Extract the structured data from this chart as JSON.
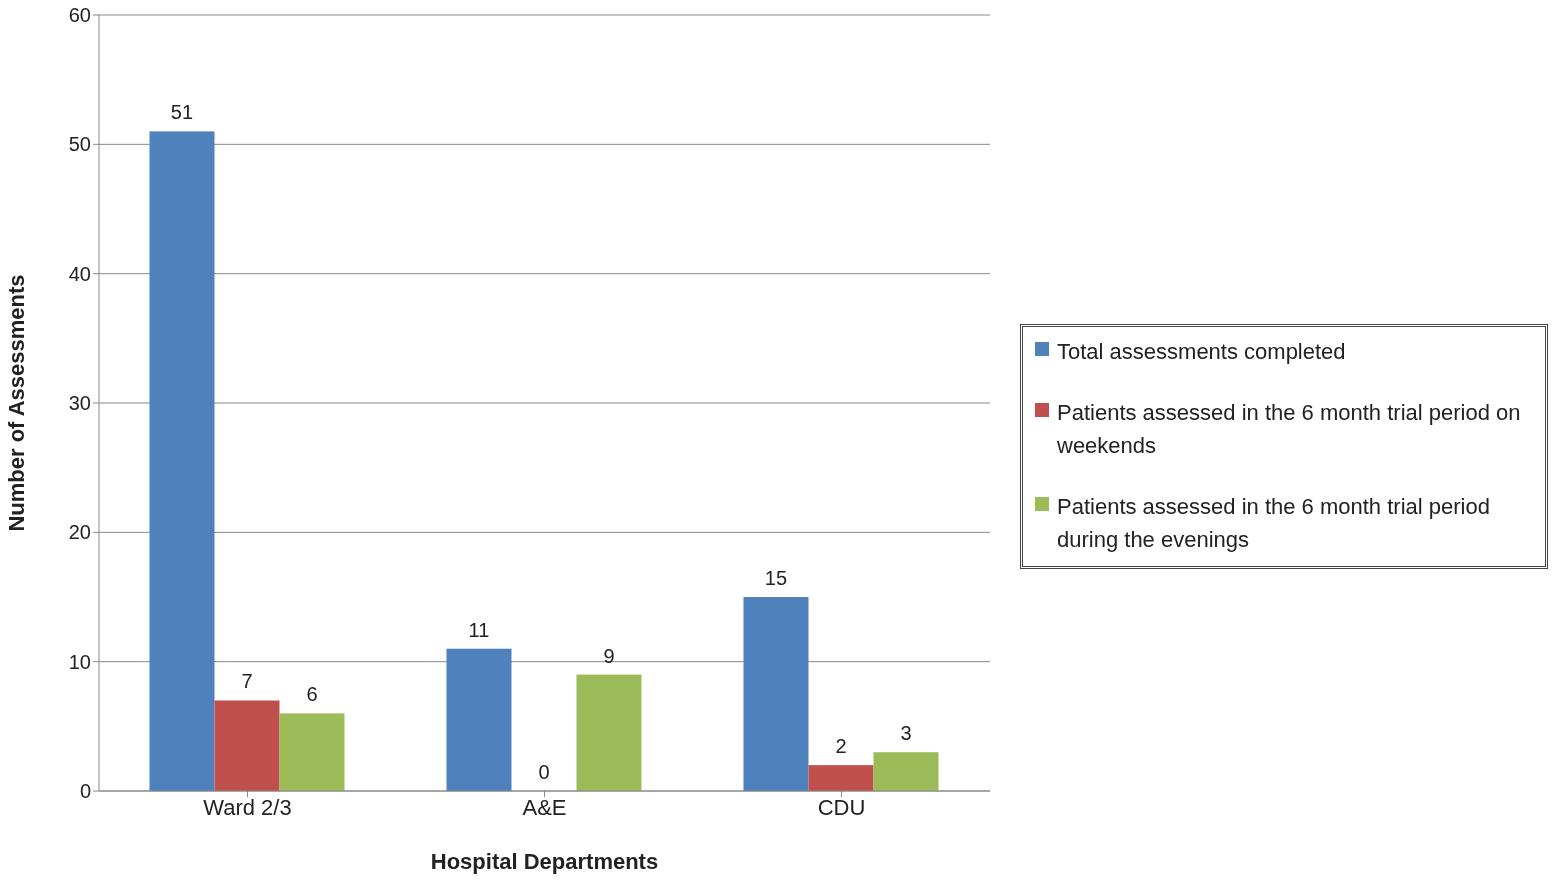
{
  "chart_data": {
    "type": "bar",
    "xlabel": "Hospital Departments",
    "ylabel": "Number of Assessments",
    "categories": [
      "Ward 2/3",
      "A&E",
      "CDU"
    ],
    "series": [
      {
        "name": "Total assessments completed",
        "color": "#4f81bd",
        "values": [
          51,
          11,
          15
        ]
      },
      {
        "name": "Patients assessed in the 6 month trial period on weekends",
        "color": "#c0504d",
        "values": [
          7,
          0,
          2
        ]
      },
      {
        "name": "Patients assessed in the 6 month trial period during the evenings",
        "color": "#9bbb59",
        "values": [
          6,
          9,
          3
        ]
      }
    ],
    "ylim": [
      0,
      60
    ],
    "yticks": [
      0,
      10,
      20,
      30,
      40,
      50,
      60
    ],
    "grid": "y",
    "legend": "right",
    "data_labels": true
  }
}
